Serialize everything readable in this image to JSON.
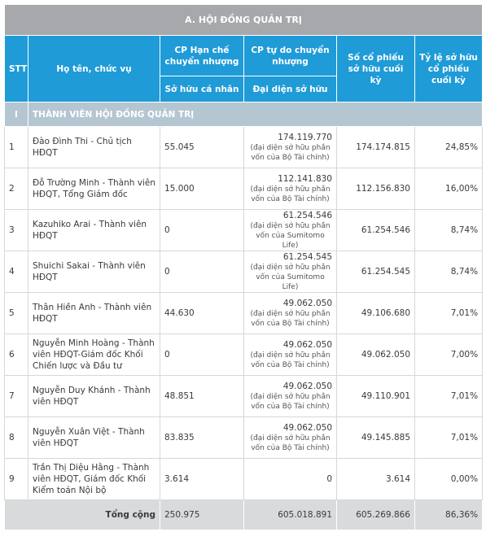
{
  "table": {
    "title": "A. HỘI ĐỒNG QUẢN TRỊ",
    "headers": {
      "stt": "STT",
      "name": "Họ tên, chức vụ",
      "restricted": "CP Hạn chế chuyển nhượng",
      "restricted_sub": "Sở hữu cá nhân",
      "free": "CP tự do chuyển nhượng",
      "free_sub": "Đại diện sở hữu",
      "shares": "Số cổ phiếu sở hữu cuối kỳ",
      "ratio": "Tỷ lệ sở hữu cổ phiếu cuối kỳ"
    },
    "section": {
      "id": "I",
      "label": "THÀNH VIÊN HỘI ĐỒNG QUẢN TRỊ"
    },
    "rows": [
      {
        "stt": "1",
        "name": "Đào Đình Thi - Chủ tịch HĐQT",
        "personal": "55.045",
        "free": "174.119.770",
        "note": "(đại diện sở hữu phần vốn của Bộ Tài chính)",
        "shares": "174.174.815",
        "ratio": "24,85%"
      },
      {
        "stt": "2",
        "name": "Đỗ Trường Minh - Thành viên HĐQT, Tổng Giám đốc",
        "personal": "15.000",
        "free": "112.141.830",
        "note": "(đại diện sở hữu phần vốn của Bộ Tài chính)",
        "shares": "112.156.830",
        "ratio": "16,00%"
      },
      {
        "stt": "3",
        "name": "Kazuhiko Arai - Thành viên HĐQT",
        "personal": "0",
        "free": "61.254.546",
        "note": "(đại diện sở hữu phần vốn của Sumitomo Life)",
        "shares": "61.254.546",
        "ratio": "8,74%"
      },
      {
        "stt": "4",
        "name": "Shuichi Sakai - Thành viên HĐQT",
        "personal": "0",
        "free": "61.254.545",
        "note": "(đại diện sở hữu phần vốn của Sumitomo Life)",
        "shares": "61.254.545",
        "ratio": "8,74%"
      },
      {
        "stt": "5",
        "name": "Thân Hiền Anh - Thành viên HĐQT",
        "personal": "44.630",
        "free": "49.062.050",
        "note": "(đại diện sở hữu phần vốn của Bộ Tài chính)",
        "shares": "49.106.680",
        "ratio": "7,01%"
      },
      {
        "stt": "6",
        "name": "Nguyễn Minh Hoàng - Thành viên HĐQT-Giám đốc Khối Chiến lược và Đầu tư",
        "personal": "0",
        "free": "49.062.050",
        "note": "(đại diện sở hữu phần vốn của Bộ Tài chính)",
        "shares": "49.062.050",
        "ratio": "7,00%"
      },
      {
        "stt": "7",
        "name": "Nguyễn Duy Khánh - Thành viên HĐQT",
        "personal": "48.851",
        "free": "49.062.050",
        "note": "(đại diện sở hữu phần vốn của Bộ Tài chính)",
        "shares": "49.110.901",
        "ratio": "7,01%"
      },
      {
        "stt": "8",
        "name": "Nguyễn Xuân Việt - Thành viên HĐQT",
        "personal": "83.835",
        "free": "49.062.050",
        "note": "(đại diện sở hữu phần vốn của Bộ Tài chính)",
        "shares": "49.145.885",
        "ratio": "7,01%"
      },
      {
        "stt": "9",
        "name": "Trần Thị Diệu Hằng - Thành viên HĐQT, Giám đốc Khối Kiểm toán Nội bộ",
        "personal": "3.614",
        "free": "0",
        "shares": "3.614",
        "ratio": "0,00%"
      }
    ],
    "total": {
      "label": "Tổng cộng",
      "personal": "250.975",
      "free": "605.018.891",
      "shares": "605.269.866",
      "ratio": "86,36%"
    }
  }
}
